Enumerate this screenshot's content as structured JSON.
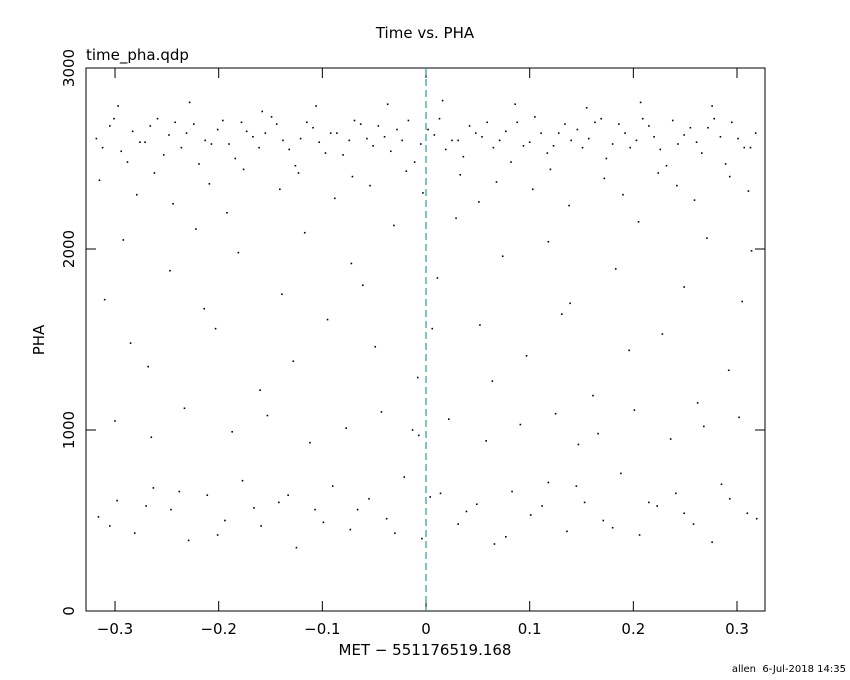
{
  "chart_data": {
    "type": "scatter",
    "title": "Time vs. PHA",
    "annotation": "time_pha.qdp",
    "xlabel": "MET − 551176519.168",
    "ylabel": "PHA",
    "footer": "allen  6-Jul-2018 14:35",
    "color": "#000000",
    "vline": {
      "value": 0,
      "color": "#2a9aa6"
    },
    "xlim": [
      -0.328,
      0.327
    ],
    "ylim": [
      0,
      3000
    ],
    "xticks": [
      {
        "value": -0.3,
        "label": "−0.3"
      },
      {
        "value": -0.2,
        "label": "−0.2"
      },
      {
        "value": -0.1,
        "label": "−0.1"
      },
      0,
      0.1,
      0.2,
      0.3
    ],
    "yticks": [
      0,
      1000,
      2000,
      3000
    ],
    "grid": false,
    "x": [
      -0.318,
      -0.305,
      -0.294,
      -0.283,
      -0.271,
      -0.259,
      -0.248,
      -0.236,
      -0.224,
      -0.213,
      -0.201,
      -0.19,
      -0.178,
      -0.167,
      -0.155,
      -0.144,
      -0.132,
      -0.121,
      -0.109,
      -0.097,
      -0.086,
      -0.074,
      -0.063,
      -0.051,
      -0.04,
      -0.028,
      -0.017,
      -0.005,
      0.008,
      0.019,
      0.031,
      0.042,
      0.054,
      0.065,
      0.077,
      0.088,
      0.1,
      0.111,
      0.123,
      0.134,
      0.146,
      0.157,
      0.169,
      0.18,
      0.192,
      0.203,
      0.215,
      0.226,
      0.238,
      0.249,
      0.261,
      0.272,
      0.284,
      0.295,
      0.307,
      0.318,
      -0.312,
      -0.301,
      -0.288,
      -0.276,
      -0.266,
      -0.253,
      -0.242,
      -0.231,
      -0.219,
      -0.207,
      -0.196,
      -0.184,
      -0.173,
      -0.161,
      -0.149,
      -0.138,
      -0.126,
      -0.115,
      -0.103,
      -0.092,
      -0.08,
      -0.069,
      -0.057,
      -0.046,
      -0.034,
      -0.023,
      -0.011,
      0.002,
      0.013,
      0.025,
      0.036,
      0.048,
      0.059,
      0.071,
      0.082,
      0.094,
      0.105,
      0.117,
      0.128,
      0.14,
      0.151,
      0.163,
      0.174,
      0.186,
      0.197,
      0.209,
      0.22,
      0.232,
      0.243,
      0.255,
      0.266,
      0.278,
      0.289,
      0.301,
      0.313,
      -0.315,
      -0.297,
      -0.279,
      -0.262,
      -0.244,
      -0.228,
      -0.209,
      -0.192,
      -0.176,
      -0.158,
      -0.141,
      -0.123,
      -0.106,
      -0.088,
      -0.071,
      -0.054,
      -0.037,
      -0.019,
      -0.003,
      0.016,
      0.033,
      0.051,
      0.068,
      0.086,
      0.103,
      0.12,
      0.138,
      0.155,
      0.172,
      0.19,
      0.207,
      0.224,
      0.242,
      0.259,
      0.276,
      0.293,
      0.311,
      -0.31,
      -0.292,
      -0.268,
      -0.247,
      -0.222,
      -0.203,
      -0.181,
      -0.16,
      -0.139,
      -0.117,
      -0.095,
      -0.072,
      -0.049,
      -0.031,
      -0.008,
      0.011,
      0.029,
      0.052,
      0.074,
      0.097,
      0.118,
      0.139,
      0.161,
      0.183,
      0.205,
      0.228,
      0.249,
      0.271,
      0.292,
      0.314,
      -0.285,
      -0.214,
      -0.128,
      -0.061,
      0.006,
      0.064,
      0.131,
      0.196,
      0.262,
      0.305,
      -0.3,
      -0.265,
      -0.233,
      -0.187,
      -0.153,
      -0.112,
      -0.077,
      -0.043,
      -0.007,
      0.022,
      0.058,
      0.091,
      0.125,
      0.166,
      0.201,
      0.236,
      0.268,
      0.302,
      -0.013,
      0.147,
      -0.316,
      -0.298,
      -0.281,
      -0.263,
      -0.246,
      -0.229,
      -0.211,
      -0.194,
      -0.177,
      -0.159,
      -0.142,
      -0.125,
      -0.107,
      -0.09,
      -0.073,
      -0.055,
      -0.038,
      -0.021,
      -0.004,
      0.014,
      0.031,
      0.049,
      0.066,
      0.083,
      0.101,
      0.118,
      0.136,
      0.153,
      0.171,
      0.188,
      0.206,
      0.223,
      0.241,
      0.258,
      0.276,
      0.293,
      0.31,
      -0.305,
      -0.27,
      -0.238,
      -0.201,
      -0.166,
      -0.133,
      -0.099,
      -0.066,
      -0.03,
      0.004,
      0.039,
      0.077,
      0.112,
      0.145,
      0.18,
      0.215,
      0.249,
      0.285,
      0.319
    ],
    "values": [
      2610,
      2680,
      2540,
      2650,
      2590,
      2720,
      2630,
      2560,
      2690,
      2600,
      2660,
      2580,
      2700,
      2620,
      2640,
      2690,
      2550,
      2610,
      2670,
      2530,
      2640,
      2600,
      2690,
      2570,
      2620,
      2660,
      2710,
      2580,
      2630,
      2550,
      2600,
      2680,
      2620,
      2560,
      2650,
      2700,
      2590,
      2640,
      2570,
      2690,
      2660,
      2610,
      2720,
      2580,
      2640,
      2600,
      2680,
      2550,
      2710,
      2630,
      2590,
      2670,
      2620,
      2700,
      2560,
      2640,
      2560,
      2720,
      2480,
      2590,
      2680,
      2520,
      2700,
      2640,
      2470,
      2580,
      2710,
      2500,
      2650,
      2560,
      2730,
      2600,
      2460,
      2700,
      2590,
      2640,
      2520,
      2710,
      2610,
      2680,
      2540,
      2600,
      2480,
      2660,
      2720,
      2600,
      2510,
      2640,
      2700,
      2600,
      2480,
      2570,
      2730,
      2530,
      2640,
      2600,
      2560,
      2700,
      2500,
      2690,
      2560,
      2720,
      2620,
      2460,
      2580,
      2670,
      2530,
      2720,
      2470,
      2610,
      2560,
      2380,
      2790,
      2300,
      2420,
      2250,
      2810,
      2360,
      2200,
      2440,
      2760,
      2330,
      2420,
      2790,
      2280,
      2400,
      2350,
      2800,
      2430,
      2310,
      2820,
      2410,
      2260,
      2370,
      2800,
      2330,
      2440,
      2240,
      2780,
      2390,
      2300,
      2810,
      2420,
      2350,
      2270,
      2790,
      2400,
      2320,
      1720,
      2050,
      1350,
      1880,
      2110,
      1560,
      1980,
      1220,
      1750,
      2090,
      1610,
      1920,
      1460,
      2130,
      1290,
      1840,
      2170,
      1580,
      1960,
      1410,
      2040,
      1700,
      1190,
      1890,
      2150,
      1530,
      1790,
      2060,
      1330,
      1990,
      1480,
      1670,
      1380,
      1800,
      1560,
      1270,
      1640,
      1440,
      1150,
      1710,
      1050,
      960,
      1120,
      990,
      1080,
      930,
      1010,
      1100,
      970,
      1060,
      940,
      1030,
      1090,
      980,
      1110,
      950,
      1020,
      1070,
      1000,
      920,
      520,
      610,
      430,
      680,
      560,
      390,
      640,
      500,
      720,
      470,
      600,
      350,
      560,
      690,
      450,
      620,
      510,
      740,
      400,
      650,
      480,
      590,
      370,
      660,
      530,
      710,
      440,
      600,
      500,
      760,
      420,
      580,
      650,
      480,
      380,
      620,
      540,
      470,
      580,
      660,
      420,
      570,
      640,
      490,
      560,
      430,
      630,
      550,
      410,
      580,
      690,
      460,
      600,
      540,
      700,
      510
    ]
  }
}
